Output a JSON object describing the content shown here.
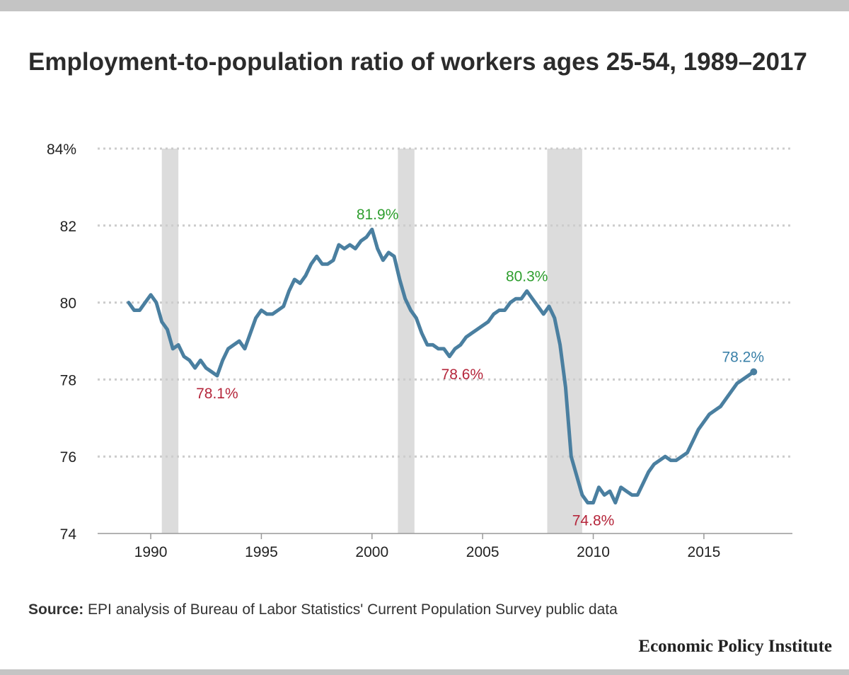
{
  "title": "Employment-to-population ratio of workers ages 25-54, 1989–2017",
  "source_label": "Source:",
  "source_text": "EPI analysis of Bureau of Labor Statistics' Current Population Survey public data",
  "brand": "Economic Policy Institute",
  "colors": {
    "line": "#4a7fa0",
    "peak": "#2e9e2e",
    "trough": "#b5263b",
    "latest": "#3a80a8",
    "recession": "#dcdcdc",
    "grid": "#cccccc"
  },
  "chart_data": {
    "type": "line",
    "title": "Employment-to-population ratio of workers ages 25-54, 1989–2017",
    "xlabel": "",
    "ylabel": "",
    "xlim": [
      1987.6,
      2019.0
    ],
    "ylim": [
      74,
      84
    ],
    "y_ticks": [
      {
        "value": 84,
        "label": "84%"
      },
      {
        "value": 82,
        "label": "82"
      },
      {
        "value": 80,
        "label": "80"
      },
      {
        "value": 78,
        "label": "78"
      },
      {
        "value": 76,
        "label": "76"
      },
      {
        "value": 74,
        "label": "74"
      }
    ],
    "x_ticks": [
      {
        "value": 1990,
        "label": "1990"
      },
      {
        "value": 1995,
        "label": "1995"
      },
      {
        "value": 2000,
        "label": "2000"
      },
      {
        "value": 2005,
        "label": "2005"
      },
      {
        "value": 2010,
        "label": "2010"
      },
      {
        "value": 2015,
        "label": "2015"
      }
    ],
    "grid": "horizontal dotted",
    "recessions": [
      {
        "start": 1990.5,
        "end": 1991.25
      },
      {
        "start": 2001.17,
        "end": 2001.92
      },
      {
        "start": 2007.92,
        "end": 2009.5
      }
    ],
    "series": [
      {
        "x": [
          1989.0,
          1989.25,
          1989.5,
          1989.75,
          1990.0,
          1990.25,
          1990.5,
          1990.75,
          1991.0,
          1991.25,
          1991.5,
          1991.75,
          1992.0,
          1992.25,
          1992.5,
          1992.75,
          1993.0,
          1993.25,
          1993.5,
          1993.75,
          1994.0,
          1994.25,
          1994.5,
          1994.75,
          1995.0,
          1995.25,
          1995.5,
          1995.75,
          1996.0,
          1996.25,
          1996.5,
          1996.75,
          1997.0,
          1997.25,
          1997.5,
          1997.75,
          1998.0,
          1998.25,
          1998.5,
          1998.75,
          1999.0,
          1999.25,
          1999.5,
          1999.75,
          2000.0,
          2000.25,
          2000.5,
          2000.75,
          2001.0,
          2001.25,
          2001.5,
          2001.75,
          2002.0,
          2002.25,
          2002.5,
          2002.75,
          2003.0,
          2003.25,
          2003.5,
          2003.75,
          2004.0,
          2004.25,
          2004.5,
          2004.75,
          2005.0,
          2005.25,
          2005.5,
          2005.75,
          2006.0,
          2006.25,
          2006.5,
          2006.75,
          2007.0,
          2007.25,
          2007.5,
          2007.75,
          2008.0,
          2008.25,
          2008.5,
          2008.75,
          2009.0,
          2009.25,
          2009.5,
          2009.75,
          2010.0,
          2010.25,
          2010.5,
          2010.75,
          2011.0,
          2011.25,
          2011.5,
          2011.75,
          2012.0,
          2012.25,
          2012.5,
          2012.75,
          2013.0,
          2013.25,
          2013.5,
          2013.75,
          2014.0,
          2014.25,
          2014.5,
          2014.75,
          2015.0,
          2015.25,
          2015.5,
          2015.75,
          2016.0,
          2016.25,
          2016.5,
          2016.75,
          2017.0,
          2017.25
        ],
        "values": [
          80.0,
          79.8,
          79.8,
          80.0,
          80.2,
          80.0,
          79.5,
          79.3,
          78.8,
          78.9,
          78.6,
          78.5,
          78.3,
          78.5,
          78.3,
          78.2,
          78.1,
          78.5,
          78.8,
          78.9,
          79.0,
          78.8,
          79.2,
          79.6,
          79.8,
          79.7,
          79.7,
          79.8,
          79.9,
          80.3,
          80.6,
          80.5,
          80.7,
          81.0,
          81.2,
          81.0,
          81.0,
          81.1,
          81.5,
          81.4,
          81.5,
          81.4,
          81.6,
          81.7,
          81.9,
          81.4,
          81.1,
          81.3,
          81.2,
          80.6,
          80.1,
          79.8,
          79.6,
          79.2,
          78.9,
          78.9,
          78.8,
          78.8,
          78.6,
          78.8,
          78.9,
          79.1,
          79.2,
          79.3,
          79.4,
          79.5,
          79.7,
          79.8,
          79.8,
          80.0,
          80.1,
          80.1,
          80.3,
          80.1,
          79.9,
          79.7,
          79.9,
          79.6,
          78.9,
          77.8,
          76.0,
          75.5,
          75.0,
          74.8,
          74.8,
          75.2,
          75.0,
          75.1,
          74.8,
          75.2,
          75.1,
          75.0,
          75.0,
          75.3,
          75.6,
          75.8,
          75.9,
          76.0,
          75.9,
          75.9,
          76.0,
          76.1,
          76.4,
          76.7,
          76.9,
          77.1,
          77.2,
          77.3,
          77.5,
          77.7,
          77.9,
          78.0,
          78.1,
          78.2
        ]
      }
    ],
    "annotations": [
      {
        "label": "78.1%",
        "x": 1993.0,
        "y": 78.1,
        "kind": "trough"
      },
      {
        "label": "81.9%",
        "x": 2000.25,
        "y": 81.9,
        "kind": "peak"
      },
      {
        "label": "78.6%",
        "x": 2003.6,
        "y": 78.6,
        "kind": "trough"
      },
      {
        "label": "80.3%",
        "x": 2007.0,
        "y": 80.3,
        "kind": "peak"
      },
      {
        "label": "74.8%",
        "x": 2010.0,
        "y": 74.8,
        "kind": "trough"
      },
      {
        "label": "78.2%",
        "x": 2017.25,
        "y": 78.2,
        "kind": "latest"
      }
    ]
  }
}
